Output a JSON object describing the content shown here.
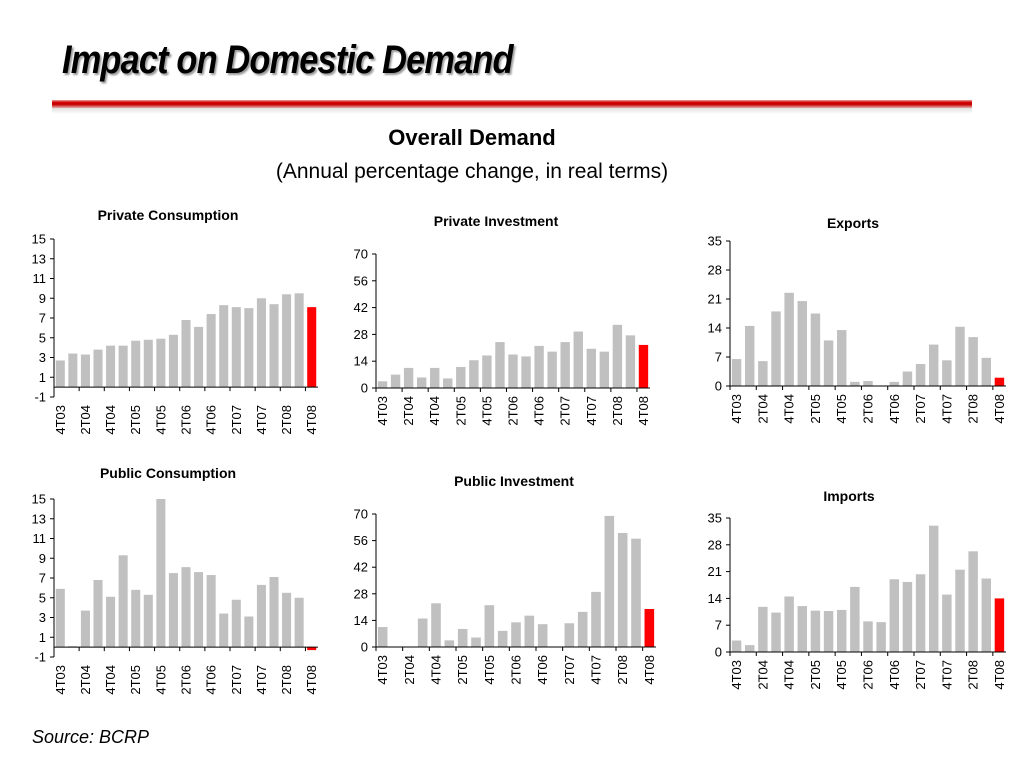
{
  "slide": {
    "title": "Impact on Domestic Demand",
    "subtitle": "Overall Demand",
    "subtitle2": "(Annual percentage change, in real terms)",
    "source": "Source: BCRP"
  },
  "colors": {
    "bar": "#c0c0c0",
    "highlight": "#ff0000",
    "accent_rule": "#c40000"
  },
  "chart_data": [
    {
      "type": "bar",
      "title": "Private Consumption",
      "ylim": [
        -1,
        15
      ],
      "yticks": [
        -1,
        1,
        3,
        5,
        7,
        9,
        11,
        13,
        15
      ],
      "xtick_labels": [
        "4T03",
        "2T04",
        "4T04",
        "2T05",
        "4T05",
        "2T06",
        "4T06",
        "2T07",
        "4T07",
        "2T08",
        "4T08"
      ],
      "values": [
        2.7,
        3.4,
        3.3,
        3.8,
        4.2,
        4.2,
        4.7,
        4.8,
        4.9,
        5.3,
        6.8,
        6.1,
        7.4,
        8.3,
        8.1,
        8.0,
        9.0,
        8.4,
        9.4,
        9.5,
        8.1
      ],
      "highlight_index": 20,
      "grid": false
    },
    {
      "type": "bar",
      "title": "Private Investment",
      "ylim": [
        0,
        70
      ],
      "yticks": [
        0,
        14,
        28,
        42,
        56,
        70
      ],
      "xtick_labels": [
        "4T03",
        "2T04",
        "4T04",
        "2T05",
        "4T05",
        "2T06",
        "4T06",
        "2T07",
        "4T07",
        "2T08",
        "4T08"
      ],
      "values": [
        3.5,
        7,
        10.5,
        5.5,
        10.5,
        5,
        11,
        14.5,
        17,
        24,
        17.5,
        16.5,
        22,
        19,
        24,
        29.5,
        20.5,
        19,
        33,
        27.5,
        22.5
      ],
      "highlight_index": 20,
      "grid": false
    },
    {
      "type": "bar",
      "title": "Exports",
      "ylim": [
        0,
        35
      ],
      "yticks": [
        0,
        7,
        14,
        21,
        28,
        35
      ],
      "xtick_labels": [
        "4T03",
        "2T04",
        "4T04",
        "2T05",
        "4T05",
        "2T06",
        "4T06",
        "2T07",
        "4T07",
        "2T08",
        "4T08"
      ],
      "values": [
        6.5,
        14.5,
        6,
        18,
        22.5,
        20.5,
        17.5,
        11,
        13.5,
        1,
        1.2,
        0.1,
        1,
        3.5,
        5.3,
        10,
        6.2,
        14.3,
        11.8,
        6.8,
        2
      ],
      "highlight_index": 20,
      "grid": false
    },
    {
      "type": "bar",
      "title": "Public Consumption",
      "ylim": [
        -1,
        15
      ],
      "yticks": [
        -1,
        1,
        3,
        5,
        7,
        9,
        11,
        13,
        15
      ],
      "xtick_labels": [
        "4T03",
        "2T04",
        "4T04",
        "2T05",
        "4T05",
        "2T06",
        "4T06",
        "2T07",
        "4T07",
        "2T08",
        "4T08"
      ],
      "values": [
        5.9,
        0.1,
        3.7,
        6.8,
        5.1,
        9.3,
        5.8,
        5.3,
        15,
        7.5,
        8.1,
        7.6,
        7.3,
        3.4,
        4.8,
        3.1,
        6.3,
        7.1,
        5.5,
        5,
        -0.3
      ],
      "highlight_index": 20,
      "grid": false
    },
    {
      "type": "bar",
      "title": "Public Investment",
      "ylim": [
        0,
        70
      ],
      "yticks": [
        0,
        14,
        28,
        42,
        56,
        70
      ],
      "xtick_labels": [
        "4T03",
        "2T04",
        "4T04",
        "2T05",
        "4T05",
        "2T06",
        "4T06",
        "2T07",
        "4T07",
        "2T08",
        "4T08"
      ],
      "values": [
        10.5,
        0,
        0,
        15,
        23,
        3.5,
        9.5,
        5,
        22,
        8.5,
        13,
        16.5,
        12,
        0,
        12.5,
        18.5,
        29,
        69,
        60,
        57,
        20
      ],
      "highlight_index": 20,
      "grid": false
    },
    {
      "type": "bar",
      "title": "Imports",
      "ylim": [
        0,
        35
      ],
      "yticks": [
        0,
        7,
        14,
        21,
        28,
        35
      ],
      "xtick_labels": [
        "4T03",
        "2T04",
        "4T04",
        "2T05",
        "4T05",
        "2T06",
        "4T06",
        "2T07",
        "4T07",
        "2T08",
        "4T08"
      ],
      "values": [
        3,
        1.8,
        11.8,
        10.3,
        14.5,
        12,
        10.8,
        10.7,
        11,
        17,
        8,
        7.8,
        19,
        18.3,
        20.3,
        33,
        15,
        21.5,
        26.3,
        19.2,
        14
      ],
      "highlight_index": 20,
      "grid": false
    }
  ]
}
